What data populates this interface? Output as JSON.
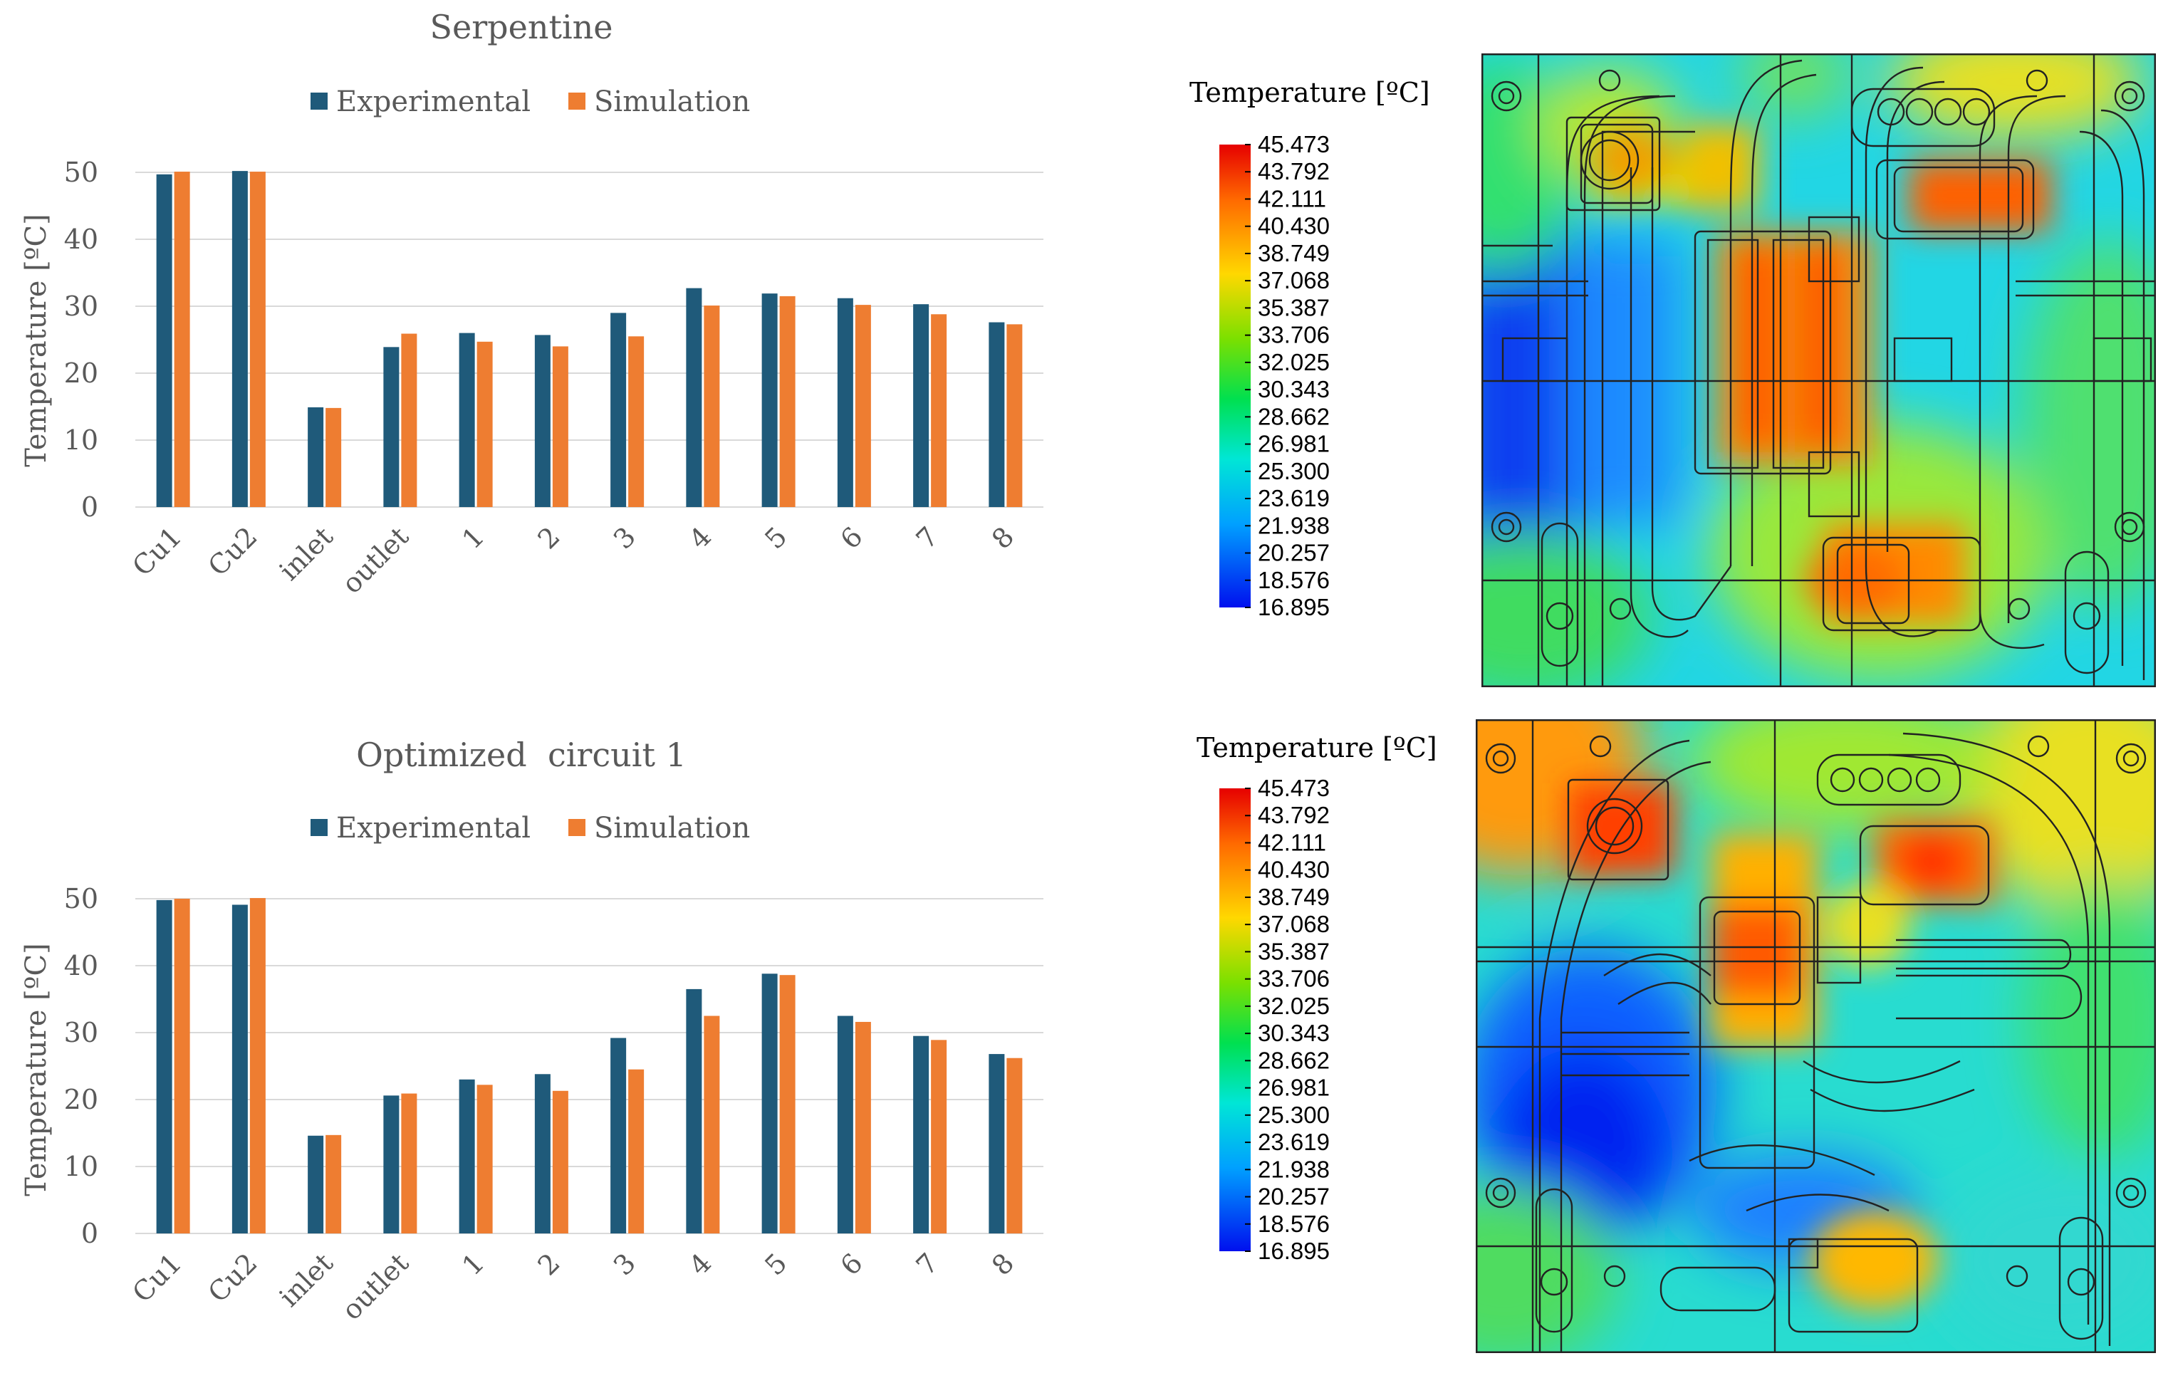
{
  "colors": {
    "experimental": "#1f5a7a",
    "simulation": "#ee7d31",
    "grid": "#d9d9d9",
    "text": "#595959"
  },
  "chart_data": [
    {
      "type": "bar",
      "title": "Serpentine",
      "ylabel": "Temperature [ºC]",
      "ylim": [
        0,
        50
      ],
      "yticks": [
        "0",
        "10",
        "20",
        "30",
        "40",
        "50"
      ],
      "legend": "top",
      "categories": [
        "Cu1",
        "Cu2",
        "inlet",
        "outlet",
        "1",
        "2",
        "3",
        "4",
        "5",
        "6",
        "7",
        "8"
      ],
      "series": [
        {
          "name": "Experimental",
          "values": [
            49.7,
            50.2,
            14.9,
            23.9,
            26.0,
            25.7,
            29.0,
            32.7,
            31.9,
            31.2,
            30.3,
            27.6
          ]
        },
        {
          "name": "Simulation",
          "values": [
            50.1,
            50.1,
            14.8,
            25.9,
            24.7,
            24.0,
            25.5,
            30.1,
            31.5,
            30.2,
            28.8,
            27.3
          ]
        }
      ]
    },
    {
      "type": "bar",
      "title": "Optimized  circuit 1",
      "ylabel": "Temperature [ºC]",
      "ylim": [
        0,
        50
      ],
      "yticks": [
        "0",
        "10",
        "20",
        "30",
        "40",
        "50"
      ],
      "legend": "top",
      "categories": [
        "Cu1",
        "Cu2",
        "inlet",
        "outlet",
        "1",
        "2",
        "3",
        "4",
        "5",
        "6",
        "7",
        "8"
      ],
      "series": [
        {
          "name": "Experimental",
          "values": [
            49.8,
            49.1,
            14.6,
            20.6,
            23.0,
            23.8,
            29.2,
            36.5,
            38.8,
            32.5,
            29.5,
            26.8
          ]
        },
        {
          "name": "Simulation",
          "values": [
            50.0,
            50.1,
            14.7,
            20.9,
            22.2,
            21.3,
            24.5,
            32.5,
            38.6,
            31.6,
            28.9,
            26.2
          ]
        }
      ]
    }
  ],
  "heatmaps": [
    {
      "colorbar_title": "Temperature [ºC]",
      "colorbar_ticks": [
        "45.473",
        "43.792",
        "42.111",
        "40.430",
        "38.749",
        "37.068",
        "35.387",
        "33.706",
        "32.025",
        "30.343",
        "28.662",
        "26.981",
        "25.300",
        "23.619",
        "21.938",
        "20.257",
        "18.576",
        "16.895"
      ]
    },
    {
      "colorbar_title": "Temperature [ºC]",
      "colorbar_ticks": [
        "45.473",
        "43.792",
        "42.111",
        "40.430",
        "38.749",
        "37.068",
        "35.387",
        "33.706",
        "32.025",
        "30.343",
        "28.662",
        "26.981",
        "25.300",
        "23.619",
        "21.938",
        "20.257",
        "18.576",
        "16.895"
      ]
    }
  ]
}
